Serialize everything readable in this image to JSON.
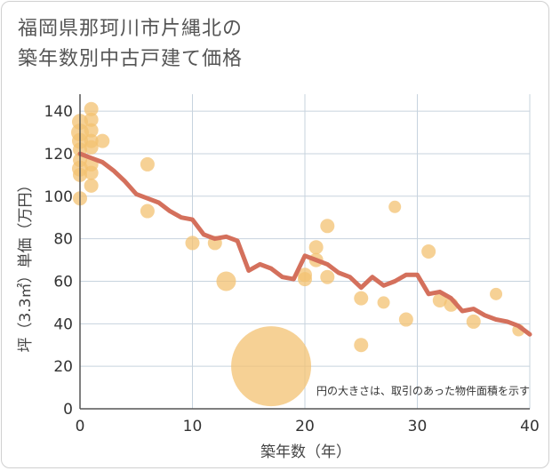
{
  "title_line1": "福岡県那珂川市片縄北の",
  "title_line2": "築年数別中古戸建て価格",
  "chart_data": {
    "type": "scatter",
    "xlabel": "築年数（年）",
    "ylabel": "坪（3.3㎡）単価（万円）",
    "xlim": [
      0,
      40
    ],
    "ylim": [
      0,
      148
    ],
    "xticks": [
      "0",
      "10",
      "20",
      "30",
      "40"
    ],
    "yticks": [
      "0",
      "20",
      "40",
      "60",
      "80",
      "100",
      "120",
      "140"
    ],
    "note": "円の大きさは、取引のあった物件面積を示す",
    "colors": {
      "point": "#f3c272",
      "line": "#d4705c",
      "grid": "#c7d3de"
    },
    "points": [
      {
        "x": 0,
        "y": 99,
        "s": 8
      },
      {
        "x": 0,
        "y": 110,
        "s": 8
      },
      {
        "x": 0,
        "y": 113,
        "s": 9
      },
      {
        "x": 0,
        "y": 117,
        "s": 8
      },
      {
        "x": 0,
        "y": 122,
        "s": 8
      },
      {
        "x": 0,
        "y": 126,
        "s": 9
      },
      {
        "x": 0,
        "y": 130,
        "s": 10
      },
      {
        "x": 0,
        "y": 135,
        "s": 9
      },
      {
        "x": 1,
        "y": 105,
        "s": 8
      },
      {
        "x": 1,
        "y": 111,
        "s": 8
      },
      {
        "x": 1,
        "y": 115,
        "s": 8
      },
      {
        "x": 1,
        "y": 123,
        "s": 8
      },
      {
        "x": 1,
        "y": 126,
        "s": 8
      },
      {
        "x": 1,
        "y": 131,
        "s": 8
      },
      {
        "x": 1,
        "y": 136,
        "s": 8
      },
      {
        "x": 1,
        "y": 141,
        "s": 8
      },
      {
        "x": 2,
        "y": 126,
        "s": 8
      },
      {
        "x": 6,
        "y": 115,
        "s": 8
      },
      {
        "x": 6,
        "y": 93,
        "s": 8
      },
      {
        "x": 10,
        "y": 78,
        "s": 8
      },
      {
        "x": 12,
        "y": 78,
        "s": 8
      },
      {
        "x": 13,
        "y": 60,
        "s": 11
      },
      {
        "x": 17,
        "y": 20,
        "s": 45
      },
      {
        "x": 20,
        "y": 63,
        "s": 8
      },
      {
        "x": 20,
        "y": 61,
        "s": 8
      },
      {
        "x": 21,
        "y": 76,
        "s": 8
      },
      {
        "x": 21,
        "y": 70,
        "s": 8
      },
      {
        "x": 22,
        "y": 86,
        "s": 8
      },
      {
        "x": 22,
        "y": 62,
        "s": 8
      },
      {
        "x": 25,
        "y": 52,
        "s": 8
      },
      {
        "x": 25,
        "y": 30,
        "s": 8
      },
      {
        "x": 27,
        "y": 50,
        "s": 7
      },
      {
        "x": 28,
        "y": 95,
        "s": 7
      },
      {
        "x": 29,
        "y": 42,
        "s": 8
      },
      {
        "x": 31,
        "y": 74,
        "s": 8
      },
      {
        "x": 32,
        "y": 51,
        "s": 8
      },
      {
        "x": 33,
        "y": 49,
        "s": 8
      },
      {
        "x": 35,
        "y": 41,
        "s": 8
      },
      {
        "x": 37,
        "y": 54,
        "s": 7
      },
      {
        "x": 39,
        "y": 37,
        "s": 7
      }
    ],
    "trend": {
      "x": [
        0,
        1,
        2,
        3,
        4,
        5,
        6,
        7,
        8,
        9,
        10,
        11,
        12,
        13,
        14,
        15,
        16,
        17,
        18,
        19,
        20,
        21,
        22,
        23,
        24,
        25,
        26,
        27,
        28,
        29,
        30,
        31,
        32,
        33,
        34,
        35,
        36,
        37,
        38,
        39,
        40
      ],
      "y": [
        120,
        118,
        116,
        112,
        107,
        101,
        99,
        97,
        93,
        90,
        89,
        82,
        80,
        81,
        79,
        65,
        68,
        66,
        62,
        61,
        72,
        70,
        68,
        64,
        62,
        57,
        62,
        58,
        60,
        63,
        63,
        54,
        55,
        52,
        46,
        47,
        44,
        42,
        41,
        39,
        35
      ]
    }
  }
}
